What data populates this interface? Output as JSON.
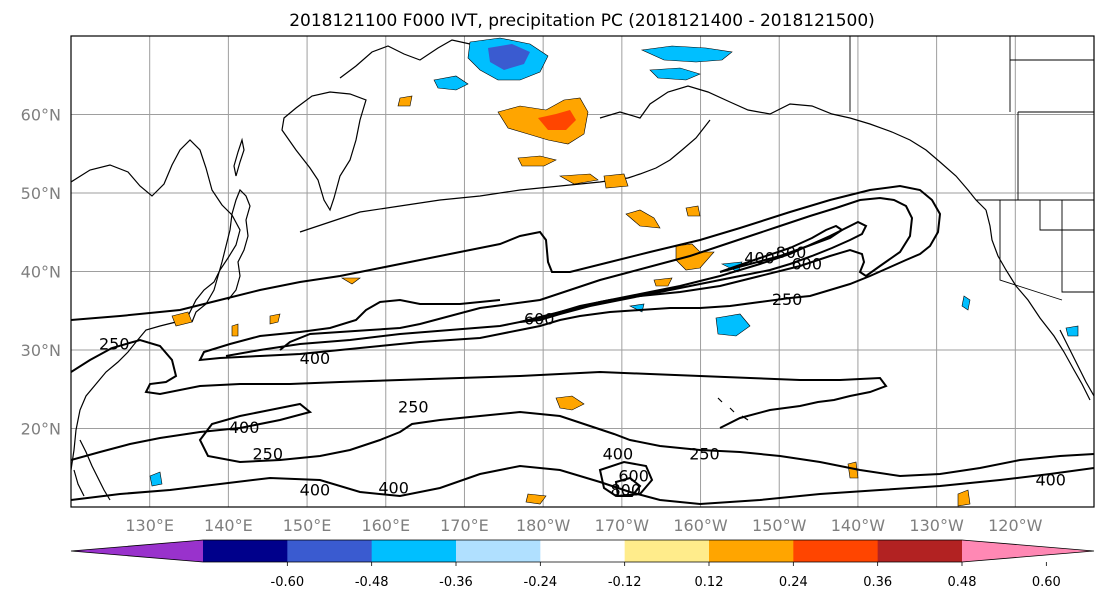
{
  "title": "2018121100 F000 IVT, precipitation PC (2018121400 - 2018121500)",
  "map": {
    "lon_range": [
      120,
      250
    ],
    "lat_range": [
      10,
      70
    ],
    "lat_ticks": [
      {
        "value": 60,
        "label": "60°N"
      },
      {
        "value": 50,
        "label": "50°N"
      },
      {
        "value": 40,
        "label": "40°N"
      },
      {
        "value": 30,
        "label": "30°N"
      },
      {
        "value": 20,
        "label": "20°N"
      }
    ],
    "lon_ticks": [
      {
        "value": 130,
        "label": "130°E"
      },
      {
        "value": 140,
        "label": "140°E"
      },
      {
        "value": 150,
        "label": "150°E"
      },
      {
        "value": 160,
        "label": "160°E"
      },
      {
        "value": 170,
        "label": "170°E"
      },
      {
        "value": 180,
        "label": "180°W"
      },
      {
        "value": 190,
        "label": "170°W"
      },
      {
        "value": 200,
        "label": "160°W"
      },
      {
        "value": 210,
        "label": "150°W"
      },
      {
        "value": 220,
        "label": "140°W"
      },
      {
        "value": 230,
        "label": "130°W"
      },
      {
        "value": 240,
        "label": "120°W"
      }
    ],
    "gridlines": true
  },
  "contours": {
    "levels": [
      250,
      400,
      600,
      800
    ],
    "labels": [
      {
        "text": "250",
        "lon": 125.5,
        "lat": 30.8
      },
      {
        "text": "400",
        "lon": 151.0,
        "lat": 29.0
      },
      {
        "text": "600",
        "lon": 179.5,
        "lat": 34.0
      },
      {
        "text": "250",
        "lon": 211.0,
        "lat": 36.5
      },
      {
        "text": "400",
        "lon": 207.5,
        "lat": 41.8
      },
      {
        "text": "800",
        "lon": 211.5,
        "lat": 42.5
      },
      {
        "text": "600",
        "lon": 213.5,
        "lat": 41.0
      },
      {
        "text": "250",
        "lon": 163.5,
        "lat": 22.8
      },
      {
        "text": "400",
        "lon": 142.0,
        "lat": 20.2
      },
      {
        "text": "250",
        "lon": 145.0,
        "lat": 16.8
      },
      {
        "text": "400",
        "lon": 151.0,
        "lat": 12.2
      },
      {
        "text": "400",
        "lon": 161.0,
        "lat": 12.5
      },
      {
        "text": "400",
        "lon": 189.5,
        "lat": 16.8
      },
      {
        "text": "250",
        "lon": 200.5,
        "lat": 16.8
      },
      {
        "text": "600",
        "lon": 191.5,
        "lat": 14.0
      },
      {
        "text": "800",
        "lon": 190.5,
        "lat": 12.2
      },
      {
        "text": "400",
        "lon": 244.5,
        "lat": 13.5
      }
    ]
  },
  "colorbar": {
    "colors": [
      "#9932cc",
      "#00008b",
      "#3a5bd0",
      "#00bfff",
      "#b0e0ff",
      "#ffffff",
      "#ffec8b",
      "#ffa500",
      "#ff4500",
      "#b22222",
      "#ff88b4"
    ],
    "ticks": [
      "-0.60",
      "-0.48",
      "-0.36",
      "-0.24",
      "-0.12",
      "0.12",
      "0.24",
      "0.36",
      "0.48",
      "0.60"
    ]
  }
}
